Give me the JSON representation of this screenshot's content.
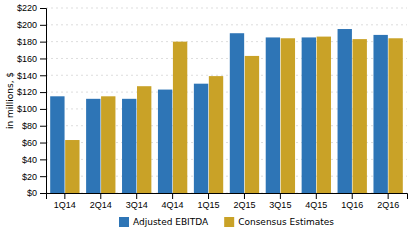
{
  "chart_data": {
    "type": "bar",
    "categories": [
      "1Q14",
      "2Q14",
      "3Q14",
      "4Q14",
      "1Q15",
      "2Q15",
      "3Q15",
      "4Q15",
      "1Q16",
      "2Q16"
    ],
    "series": [
      {
        "name": "Adjusted EBITDA",
        "color": "#2e75b6",
        "values": [
          115,
          112,
          112,
          123,
          130,
          190,
          185,
          185,
          195,
          188
        ]
      },
      {
        "name": "Consensus Estimates",
        "color": "#c9a227",
        "values": [
          63,
          115,
          127,
          180,
          139,
          163,
          184,
          186,
          183,
          184
        ]
      }
    ],
    "ylabel": "in millions, $",
    "ylim": [
      0,
      220
    ],
    "yticks": [
      {
        "value": 0,
        "label": "$0"
      },
      {
        "value": 20,
        "label": "$20"
      },
      {
        "value": 40,
        "label": "$40"
      },
      {
        "value": 60,
        "label": "$60"
      },
      {
        "value": 80,
        "label": "$80"
      },
      {
        "value": 100,
        "label": "$100"
      },
      {
        "value": 120,
        "label": "$120"
      },
      {
        "value": 140,
        "label": "$140"
      },
      {
        "value": 160,
        "label": "$160"
      },
      {
        "value": 180,
        "label": "$180"
      },
      {
        "value": 200,
        "label": "$200"
      },
      {
        "value": 220,
        "label": "$220"
      }
    ],
    "grid": true,
    "legend": "bottom"
  }
}
